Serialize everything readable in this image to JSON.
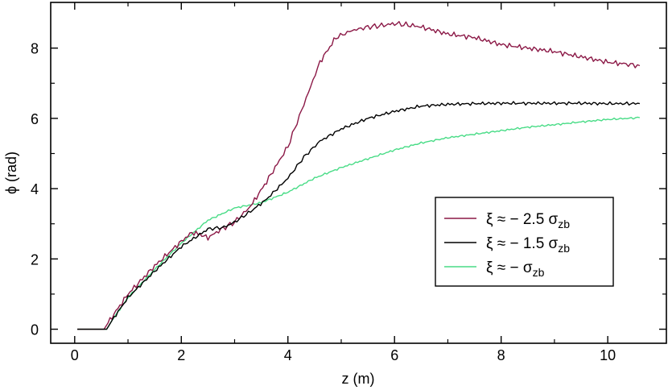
{
  "chart_data": {
    "type": "line",
    "title": "",
    "xlabel": "z (m)",
    "ylabel": "ϕ (rad)",
    "xlim": [
      -0.45,
      11.1
    ],
    "ylim": [
      -0.4,
      9.3
    ],
    "xticks": [
      0,
      2,
      4,
      6,
      8,
      10
    ],
    "yticks": [
      0,
      2,
      4,
      6,
      8
    ],
    "xtick_labels": [
      "0",
      "2",
      "4",
      "6",
      "8",
      "10"
    ],
    "ytick_labels": [
      "0",
      "2",
      "4",
      "6",
      "8"
    ],
    "grid": false,
    "legend_position": "bottom-right",
    "series": [
      {
        "name_main": "ξ ≈ − 2.5 σ",
        "name_sub": "zb",
        "color": "#8b1846",
        "x": [
          0.05,
          0.55,
          0.7,
          1.0,
          1.5,
          2.0,
          2.2,
          2.35,
          2.5,
          2.7,
          3.0,
          3.3,
          3.6,
          4.0,
          4.3,
          4.6,
          4.9,
          5.2,
          5.5,
          5.8,
          6.0,
          6.3,
          6.5,
          7.0,
          7.5,
          8.0,
          8.5,
          9.0,
          9.5,
          10.0,
          10.3,
          10.6
        ],
        "y": [
          0.0,
          0.0,
          0.35,
          1.0,
          1.8,
          2.5,
          2.75,
          2.7,
          2.6,
          2.8,
          3.05,
          3.5,
          4.2,
          5.2,
          6.4,
          7.6,
          8.3,
          8.5,
          8.6,
          8.65,
          8.7,
          8.65,
          8.6,
          8.4,
          8.3,
          8.1,
          8.0,
          7.9,
          7.75,
          7.6,
          7.55,
          7.5
        ]
      },
      {
        "name_main": "ξ ≈ − 1.5 σ",
        "name_sub": "zb",
        "color": "#000000",
        "x": [
          0.05,
          0.6,
          0.7,
          1.0,
          1.5,
          2.0,
          2.5,
          2.8,
          3.0,
          3.3,
          3.6,
          4.0,
          4.3,
          4.6,
          5.0,
          5.5,
          6.0,
          6.5,
          7.0,
          7.5,
          8.0,
          8.5,
          9.0,
          9.5,
          10.0,
          10.6
        ],
        "y": [
          0.0,
          0.0,
          0.25,
          0.9,
          1.65,
          2.35,
          2.85,
          2.9,
          3.05,
          3.35,
          3.7,
          4.3,
          4.9,
          5.35,
          5.7,
          6.0,
          6.2,
          6.35,
          6.4,
          6.42,
          6.43,
          6.43,
          6.43,
          6.43,
          6.42,
          6.42
        ]
      },
      {
        "name_main": "ξ ≈ − σ",
        "name_sub": "zb",
        "color": "#48dc86",
        "x": [
          0.05,
          0.6,
          0.7,
          1.0,
          1.5,
          2.0,
          2.5,
          3.0,
          3.5,
          4.0,
          4.5,
          5.0,
          5.5,
          6.0,
          6.5,
          7.0,
          7.5,
          8.0,
          8.5,
          9.0,
          9.5,
          10.0,
          10.6
        ],
        "y": [
          0.0,
          0.0,
          0.25,
          0.9,
          1.7,
          2.45,
          3.1,
          3.45,
          3.6,
          3.9,
          4.3,
          4.6,
          4.85,
          5.1,
          5.3,
          5.45,
          5.55,
          5.65,
          5.75,
          5.82,
          5.9,
          5.97,
          6.02
        ]
      }
    ]
  }
}
